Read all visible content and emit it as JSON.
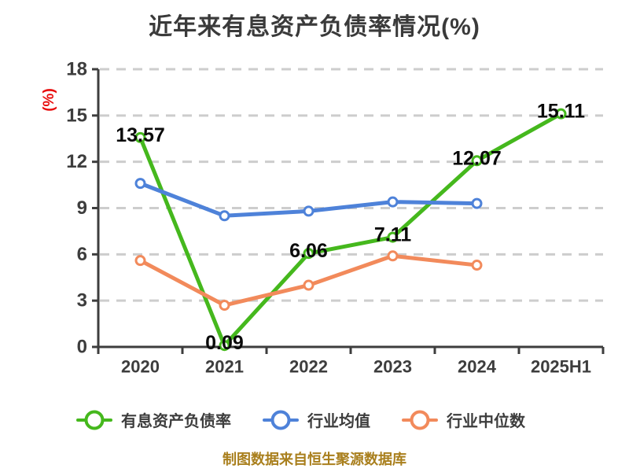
{
  "title": "近年来有息资产负债率情况(%)",
  "footer": "制图数据来自恒生聚源数据库",
  "colors": {
    "background": "#ffffff",
    "title": "#3a3a3a",
    "axis": "#3d3d3d",
    "tick_label": "#3d3d3d",
    "grid": "#cdcdcd",
    "y_axis_label": "#e80c0c",
    "data_label": "#0a0a0a",
    "footer": "#a97f1d",
    "legend_text": "#3d3d3d"
  },
  "chart_data": {
    "type": "line",
    "title": "近年来有息资产负债率情况(%)",
    "ylabel": "(%)",
    "xlabel": "",
    "categories": [
      "2020",
      "2021",
      "2022",
      "2023",
      "2024",
      "2025H1"
    ],
    "yticks": [
      0,
      3,
      6,
      9,
      12,
      15,
      18
    ],
    "ylim": [
      0,
      18
    ],
    "grid": true,
    "grid_style": "dashed",
    "legend_position": "bottom",
    "marker": "circle-white-fill",
    "series": [
      {
        "name": "有息资产负债率",
        "color": "#45b81d",
        "values": [
          13.57,
          0.09,
          6.06,
          7.11,
          12.07,
          15.11
        ],
        "data_labels": [
          "13.57",
          "0.09",
          "6.06",
          "7.11",
          "12.07",
          "15.11"
        ]
      },
      {
        "name": "行业均值",
        "color": "#4e82d9",
        "values": [
          10.6,
          8.5,
          8.8,
          9.4,
          9.3,
          null
        ],
        "data_labels": null
      },
      {
        "name": "行业中位数",
        "color": "#f28a5b",
        "values": [
          5.6,
          2.7,
          4.0,
          5.9,
          5.3,
          null
        ],
        "data_labels": null
      }
    ]
  }
}
